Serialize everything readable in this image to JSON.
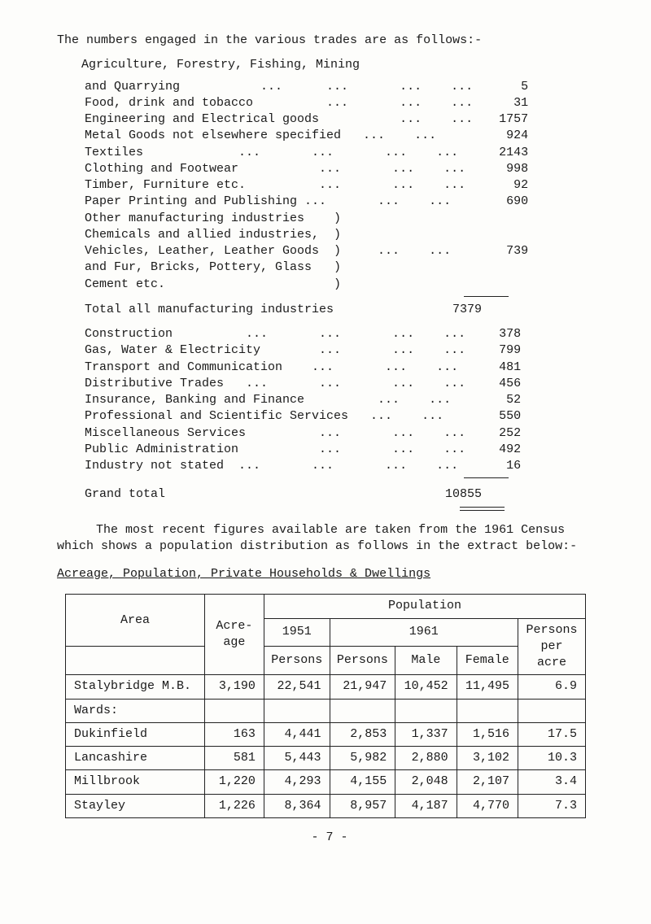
{
  "intro": "The numbers engaged in the various trades are as follows:-",
  "section_title": "Agriculture, Forestry, Fishing, Mining",
  "trades": [
    {
      "label": "and Quarrying           ...      ...       ...    ...",
      "value": "5"
    },
    {
      "label": "Food, drink and tobacco          ...       ...    ...",
      "value": "31"
    },
    {
      "label": "Engineering and Electrical goods           ...    ...",
      "value": "1757"
    },
    {
      "label": "Metal Goods not elsewhere specified   ...    ...",
      "value": "924"
    },
    {
      "label": "Textiles             ...       ...       ...    ...",
      "value": "2143"
    },
    {
      "label": "Clothing and Footwear           ...       ...    ...",
      "value": "998"
    },
    {
      "label": "Timber, Furniture etc.          ...       ...    ...",
      "value": "92"
    },
    {
      "label": "Paper Printing and Publishing ...       ...    ...",
      "value": "690"
    },
    {
      "label": "Other manufacturing industries    )",
      "value": ""
    },
    {
      "label": "Chemicals and allied industries,  )",
      "value": ""
    },
    {
      "label": "Vehicles, Leather, Leather Goods  )     ...    ...",
      "value": "739"
    },
    {
      "label": "and Fur, Bricks, Pottery, Glass   )",
      "value": ""
    },
    {
      "label": "Cement etc.                       )",
      "value": ""
    }
  ],
  "total_manufacturing": {
    "label": "Total all manufacturing industries",
    "value": "7379"
  },
  "services": [
    {
      "label": "Construction          ...       ...       ...    ...",
      "value": "378"
    },
    {
      "label": "Gas, Water & Electricity        ...       ...    ...",
      "value": "799"
    },
    {
      "label": "Transport and Communication    ...       ...    ...",
      "value": "481"
    },
    {
      "label": "Distributive Trades   ...       ...       ...    ...",
      "value": "456"
    },
    {
      "label": "Insurance, Banking and Finance          ...    ...",
      "value": "52"
    },
    {
      "label": "Professional and Scientific Services   ...    ...",
      "value": "550"
    },
    {
      "label": "Miscellaneous Services          ...       ...    ...",
      "value": "252"
    },
    {
      "label": "Public Administration           ...       ...    ...",
      "value": "492"
    },
    {
      "label": "Industry not stated  ...       ...       ...    ...",
      "value": "16"
    }
  ],
  "grand_total": {
    "label": "Grand total",
    "value": "10855"
  },
  "paragraph": "The most recent figures available are taken from the 1961 Census which shows a population distribution as follows in the extract below:-",
  "subheading": "Acreage, Population, Private Households & Dwellings",
  "pop_headers": {
    "area": "Area",
    "population": "Population",
    "y1951": "1951",
    "y1961": "1961",
    "acreage": "Acre-\nage",
    "persons1": "Persons",
    "persons2": "Persons",
    "male": "Male",
    "female": "Female",
    "ppa": "Persons\nper\nacre"
  },
  "pop_rows": [
    {
      "area": "Stalybridge M.B.",
      "acre": "3,190",
      "p1": "22,541",
      "p2": "21,947",
      "m": "10,452",
      "f": "11,495",
      "ppa": "6.9"
    },
    {
      "area": "Wards:",
      "acre": "",
      "p1": "",
      "p2": "",
      "m": "",
      "f": "",
      "ppa": ""
    },
    {
      "area": "  Dukinfield",
      "acre": "163",
      "p1": "4,441",
      "p2": "2,853",
      "m": "1,337",
      "f": "1,516",
      "ppa": "17.5"
    },
    {
      "area": "  Lancashire",
      "acre": "581",
      "p1": "5,443",
      "p2": "5,982",
      "m": "2,880",
      "f": "3,102",
      "ppa": "10.3"
    },
    {
      "area": "  Millbrook",
      "acre": "1,220",
      "p1": "4,293",
      "p2": "4,155",
      "m": "2,048",
      "f": "2,107",
      "ppa": "3.4"
    },
    {
      "area": "  Stayley",
      "acre": "1,226",
      "p1": "8,364",
      "p2": "8,957",
      "m": "4,187",
      "f": "4,770",
      "ppa": "7.3"
    }
  ],
  "page_number": "- 7 -"
}
